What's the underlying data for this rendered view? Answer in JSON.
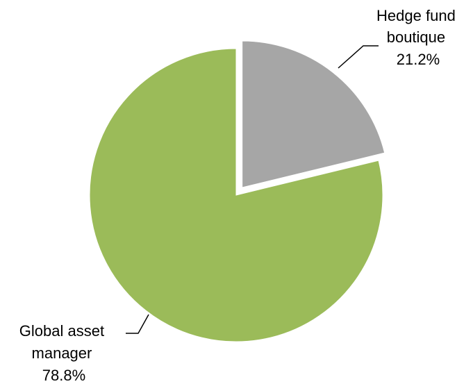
{
  "chart_data": {
    "type": "pie",
    "title": "",
    "legend": "none",
    "start_angle_deg": 90,
    "direction": "clockwise",
    "slices": [
      {
        "label_lines": [
          "Hedge fund",
          "boutique"
        ],
        "percent_label": "21.2%",
        "value": 21.2,
        "color": "#a6a6a6",
        "exploded": true
      },
      {
        "label_lines": [
          "Global asset",
          "manager"
        ],
        "percent_label": "78.8%",
        "value": 78.8,
        "color": "#9bbb59",
        "exploded": false
      }
    ]
  }
}
